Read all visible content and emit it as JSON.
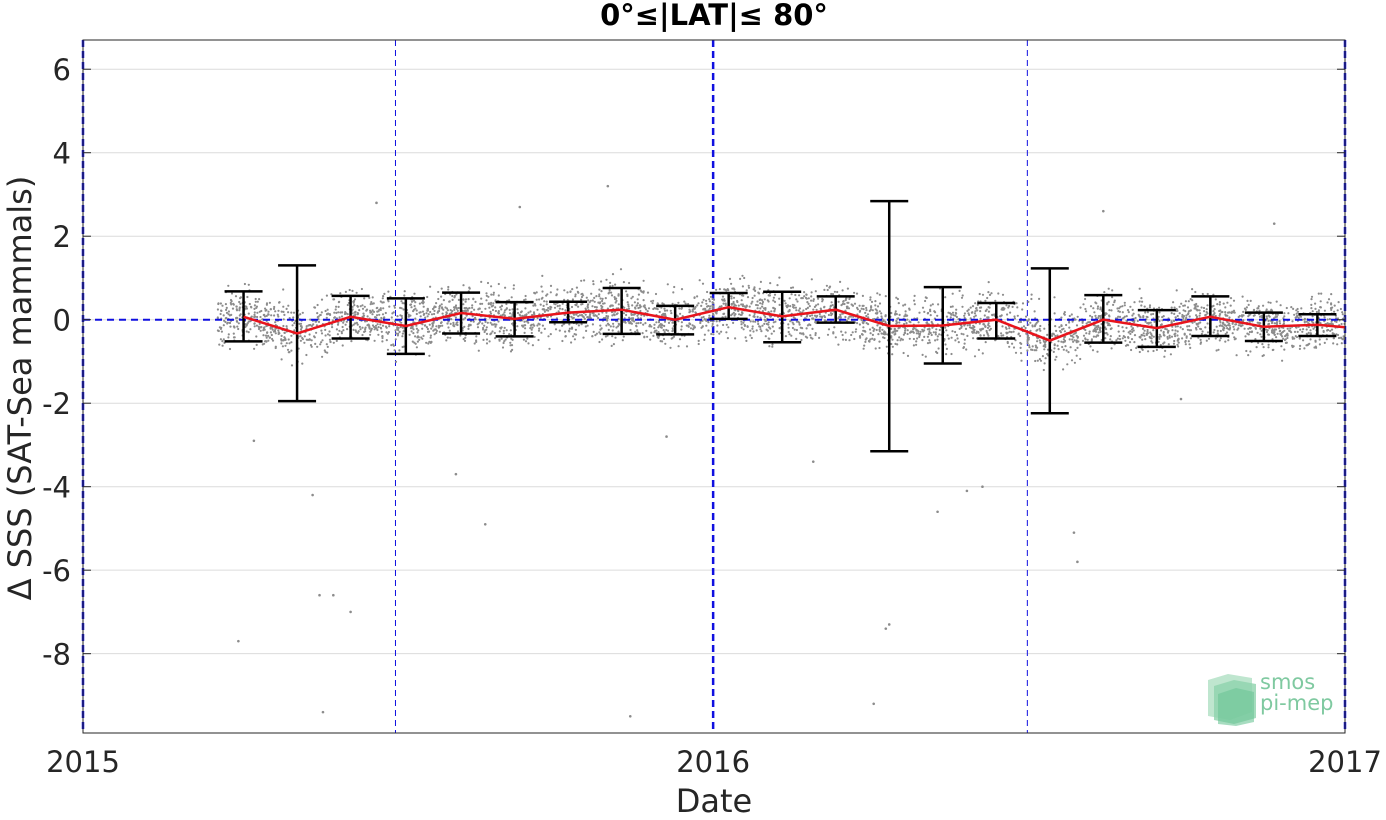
{
  "chart_data": {
    "type": "scatter",
    "title": "0°≤|LAT|≤ 80°",
    "xlabel": "Date",
    "ylabel": "Δ SSS (SAT-Sea mammals)",
    "x_range": [
      "2015-01-01",
      "2017-01-01"
    ],
    "ylim": [
      -9.9,
      6.7
    ],
    "x_ticks": [
      "2015",
      "2016",
      "2017"
    ],
    "y_ticks": [
      6,
      4,
      2,
      0,
      -2,
      -4,
      -6,
      -8
    ],
    "grid": true,
    "reference_line": 0,
    "year_lines": [
      "2015-01-01",
      "2016-01-01",
      "2017-01-01"
    ],
    "half_year_lines": [
      "2015-07-01",
      "2016-07-01"
    ],
    "colors": {
      "points": "#8c8c8c",
      "mean": "#e8141c",
      "errorbar": "#000000",
      "reference": "#1010e0"
    },
    "series": [
      {
        "type": "errorbar",
        "x": [
          "2015-04-04",
          "2015-05-05",
          "2015-06-05",
          "2015-07-07",
          "2015-08-08",
          "2015-09-08",
          "2015-10-09",
          "2015-11-09",
          "2015-12-10",
          "2016-01-10",
          "2016-02-10",
          "2016-03-12",
          "2016-04-12",
          "2016-05-13",
          "2016-06-13",
          "2016-07-14",
          "2016-08-14",
          "2016-09-14",
          "2016-10-15",
          "2016-11-15",
          "2016-12-16"
        ],
        "mean": [
          0.07,
          -0.33,
          0.07,
          -0.15,
          0.16,
          0.02,
          0.17,
          0.24,
          0.0,
          0.3,
          0.08,
          0.24,
          -0.15,
          -0.14,
          0.0,
          -0.5,
          0.0,
          -0.2,
          0.07,
          -0.17,
          -0.12
        ],
        "upper": [
          0.68,
          1.3,
          0.57,
          0.51,
          0.65,
          0.42,
          0.43,
          0.76,
          0.33,
          0.64,
          0.67,
          0.56,
          2.84,
          0.78,
          0.4,
          1.23,
          0.59,
          0.23,
          0.56,
          0.17,
          0.13
        ],
        "lower": [
          -0.52,
          -1.95,
          -0.45,
          -0.82,
          -0.33,
          -0.4,
          -0.06,
          -0.34,
          -0.35,
          0.02,
          -0.54,
          -0.07,
          -3.15,
          -1.05,
          -0.45,
          -2.24,
          -0.55,
          -0.65,
          -0.39,
          -0.51,
          -0.39
        ]
      },
      {
        "type": "line",
        "x": [
          "2015-04-04",
          "2015-05-05",
          "2015-06-05",
          "2015-07-07",
          "2015-08-08",
          "2015-09-08",
          "2015-10-09",
          "2015-11-09",
          "2015-12-10",
          "2016-01-10",
          "2016-02-10",
          "2016-03-12",
          "2016-04-12",
          "2016-05-13",
          "2016-06-13",
          "2016-07-14",
          "2016-08-14",
          "2016-09-14",
          "2016-10-15",
          "2016-11-15",
          "2016-12-16",
          "2017-01-01"
        ],
        "values": [
          0.07,
          -0.33,
          0.07,
          -0.15,
          0.16,
          0.02,
          0.17,
          0.24,
          0.0,
          0.3,
          0.08,
          0.24,
          -0.15,
          -0.14,
          0.0,
          -0.5,
          0.0,
          -0.2,
          0.07,
          -0.17,
          -0.12,
          -0.18
        ]
      },
      {
        "type": "scatter",
        "x_start": "2015-03-20",
        "x_end": "2017-01-01",
        "outliers": [
          [
            "2015-04-01",
            -7.7
          ],
          [
            "2015-05-20",
            -9.4
          ],
          [
            "2015-05-26",
            -6.6
          ],
          [
            "2015-05-18",
            -6.6
          ],
          [
            "2015-06-05",
            -7.0
          ],
          [
            "2015-05-14",
            -4.2
          ],
          [
            "2015-04-10",
            -2.9
          ],
          [
            "2015-06-20",
            2.8
          ],
          [
            "2015-09-11",
            2.7
          ],
          [
            "2015-11-01",
            3.2
          ],
          [
            "2015-11-14",
            -9.5
          ],
          [
            "2015-12-05",
            -2.8
          ],
          [
            "2016-02-28",
            -3.4
          ],
          [
            "2016-04-10",
            -7.4
          ],
          [
            "2016-04-12",
            -7.3
          ],
          [
            "2016-05-10",
            -4.6
          ],
          [
            "2016-05-27",
            -4.1
          ],
          [
            "2016-06-05",
            -4.0
          ],
          [
            "2016-07-28",
            -5.1
          ],
          [
            "2016-07-30",
            -5.8
          ],
          [
            "2016-08-14",
            2.6
          ],
          [
            "2016-09-28",
            -1.9
          ],
          [
            "2016-11-21",
            2.3
          ],
          [
            "2016-04-03",
            -9.2
          ],
          [
            "2015-08-22",
            -4.9
          ],
          [
            "2015-08-05",
            -3.7
          ]
        ]
      }
    ]
  },
  "logo": {
    "line1": "smos",
    "line2": "pi-mep"
  }
}
